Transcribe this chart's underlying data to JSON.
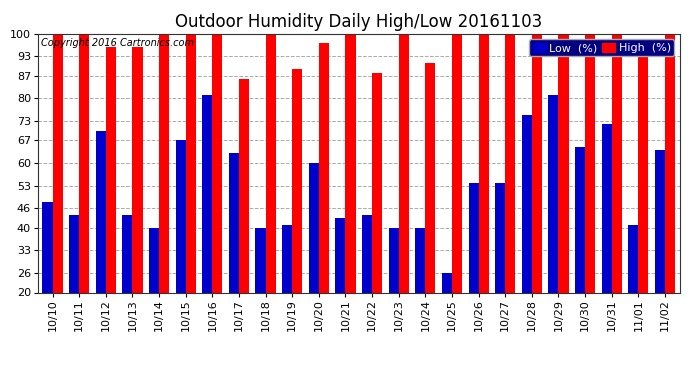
{
  "title": "Outdoor Humidity Daily High/Low 20161103",
  "copyright": "Copyright 2016 Cartronics.com",
  "categories": [
    "10/10",
    "10/11",
    "10/12",
    "10/13",
    "10/14",
    "10/15",
    "10/16",
    "10/17",
    "10/18",
    "10/19",
    "10/20",
    "10/21",
    "10/22",
    "10/23",
    "10/24",
    "10/25",
    "10/26",
    "10/27",
    "10/28",
    "10/29",
    "10/30",
    "10/31",
    "11/01",
    "11/02"
  ],
  "high_values": [
    100,
    100,
    96,
    96,
    100,
    100,
    100,
    86,
    100,
    89,
    97,
    100,
    88,
    100,
    91,
    100,
    100,
    100,
    100,
    100,
    100,
    100,
    97,
    100
  ],
  "low_values": [
    48,
    44,
    70,
    44,
    40,
    67,
    81,
    63,
    40,
    41,
    60,
    43,
    44,
    40,
    40,
    26,
    54,
    54,
    75,
    81,
    65,
    72,
    41,
    64
  ],
  "bar_width": 0.38,
  "high_color": "#ff0000",
  "low_color": "#0000cc",
  "bg_color": "#ffffff",
  "grid_color": "#aaaaaa",
  "ymin": 20,
  "ymax": 100,
  "yticks": [
    20,
    26,
    33,
    40,
    46,
    53,
    60,
    67,
    73,
    80,
    87,
    93,
    100
  ],
  "title_fontsize": 12,
  "tick_fontsize": 8,
  "legend_fontsize": 8,
  "legend_bg": "#000080",
  "copyright_color": "#000000"
}
